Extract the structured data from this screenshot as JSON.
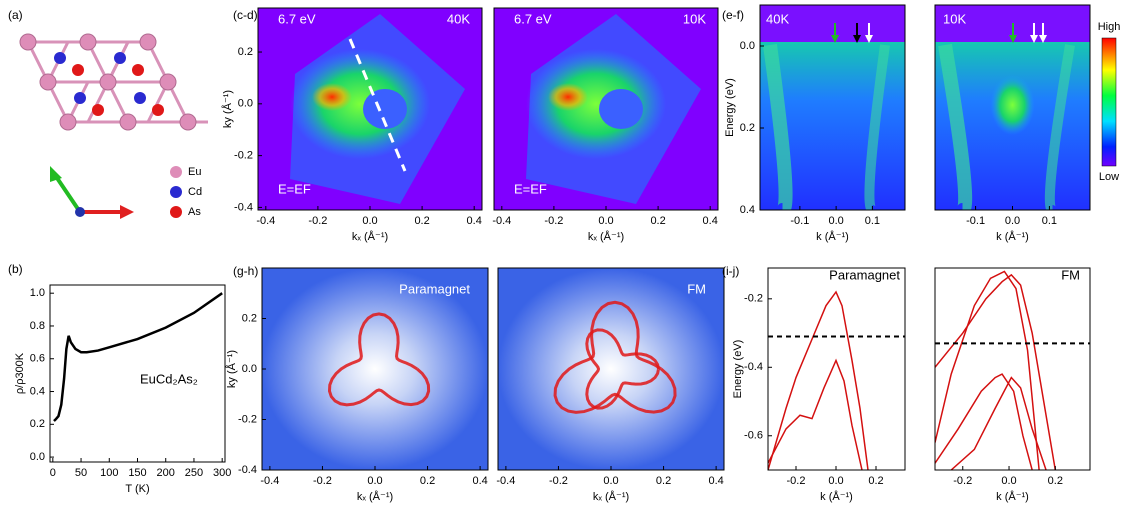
{
  "structure": {
    "label": "(a)",
    "legend": [
      "Eu",
      "Cd",
      "As"
    ]
  },
  "chart_data": [
    {
      "type": "image",
      "label": "(c-d)",
      "annotations": [
        "6.7 eV",
        "40K",
        "E=EF"
      ],
      "xlabel": "kₓ (Å⁻¹)",
      "ylabel": "ky (Å⁻¹)",
      "xlim": [
        -0.43,
        0.43
      ],
      "ylim": [
        -0.41,
        0.37
      ],
      "xticks": [
        -0.4,
        -0.2,
        {
          "value": 0,
          "label": "0.0"
        },
        0.2,
        0.4
      ],
      "yticks": [
        0.2,
        {
          "value": 0,
          "label": "0.0"
        },
        -0.2,
        -0.4
      ]
    },
    {
      "type": "image",
      "annotations": [
        "6.7 eV",
        "10K",
        "E=EF"
      ],
      "xlabel": "kₓ (Å⁻¹)",
      "xlim": [
        -0.43,
        0.43
      ],
      "ylim": [
        -0.41,
        0.37
      ],
      "xticks": [
        -0.4,
        -0.2,
        {
          "value": 0,
          "label": "0.0"
        },
        0.2,
        0.4
      ]
    },
    {
      "type": "image",
      "label": "(e-f)",
      "annotations": [
        "40K"
      ],
      "xlabel": "k (Å⁻¹)",
      "ylabel": "Energy (eV)",
      "xlim": [
        -0.21,
        0.19
      ],
      "ylim": [
        0.4,
        -0.1
      ],
      "xticks": [
        -0.1,
        {
          "value": 0,
          "label": "0.0"
        },
        0.1
      ],
      "yticks": [
        {
          "value": 0,
          "label": "0.0"
        },
        0.2,
        0.4
      ]
    },
    {
      "type": "image",
      "annotations": [
        "10K"
      ],
      "xlabel": "k (Å⁻¹)",
      "xlim": [
        -0.21,
        0.21
      ],
      "ylim": [
        0.4,
        -0.1
      ],
      "xticks": [
        -0.1,
        {
          "value": 0,
          "label": "0.0"
        },
        0.1
      ],
      "colorbar_labels": [
        "High",
        "Low"
      ]
    },
    {
      "type": "line",
      "label": "(b)",
      "annotations": [
        "EuCd₂As₂"
      ],
      "xlabel": "T (K)",
      "ylabel": "ρ/ρ300K",
      "xlim": [
        -5,
        305
      ],
      "ylim": [
        -0.03,
        1.05
      ],
      "xticks": [
        0,
        50,
        100,
        150,
        200,
        250,
        300
      ],
      "yticks": [
        {
          "value": 0,
          "label": "0.0"
        },
        0.2,
        0.4,
        0.6,
        0.8,
        {
          "value": 1,
          "label": "1.0"
        }
      ],
      "series": [
        {
          "color": "#000000",
          "x": [
            2,
            5,
            10,
            15,
            20,
            24,
            28,
            32,
            40,
            50,
            60,
            80,
            100,
            150,
            200,
            250,
            300
          ],
          "values": [
            0.22,
            0.23,
            0.25,
            0.32,
            0.48,
            0.66,
            0.74,
            0.7,
            0.66,
            0.64,
            0.64,
            0.65,
            0.67,
            0.72,
            0.79,
            0.88,
            1.0
          ]
        }
      ]
    },
    {
      "type": "image",
      "label": "(g-h)",
      "annotations": [
        "Paramagnet"
      ],
      "xlabel": "kₓ (Å⁻¹)",
      "ylabel": "ky (Å⁻¹)",
      "xlim": [
        -0.43,
        0.43
      ],
      "ylim": [
        -0.4,
        0.4
      ],
      "xticks": [
        -0.4,
        -0.2,
        {
          "value": 0,
          "label": "0.0"
        },
        0.2,
        0.4
      ],
      "yticks": [
        0.2,
        {
          "value": 0,
          "label": "0.0"
        },
        -0.2,
        -0.4
      ]
    },
    {
      "type": "image",
      "annotations": [
        "FM"
      ],
      "xlabel": "kₓ (Å⁻¹)",
      "xlim": [
        -0.43,
        0.43
      ],
      "ylim": [
        -0.4,
        0.4
      ],
      "xticks": [
        -0.4,
        -0.2,
        {
          "value": 0,
          "label": "0.0"
        },
        0.2,
        0.4
      ]
    },
    {
      "type": "line",
      "label": "(i-j)",
      "annotations": [
        "Paramagnet"
      ],
      "xlabel": "k (Å⁻¹)",
      "ylabel": "Energy (eV)",
      "xlim": [
        -0.34,
        0.345
      ],
      "ylim": [
        -0.7,
        -0.11
      ],
      "xticks": [
        -0.2,
        {
          "value": 0,
          "label": "0.0"
        },
        0.2
      ],
      "yticks": [
        -0.2,
        -0.4,
        -0.6
      ],
      "fermi_level": -0.31,
      "series": [
        {
          "color": "#d41010",
          "x": [
            -0.34,
            -0.25,
            -0.2,
            -0.1,
            -0.05,
            0,
            0.03,
            0.08,
            0.12,
            0.16
          ],
          "values": [
            -0.7,
            -0.52,
            -0.43,
            -0.29,
            -0.22,
            -0.18,
            -0.22,
            -0.38,
            -0.52,
            -0.7
          ]
        },
        {
          "color": "#d41010",
          "x": [
            -0.34,
            -0.25,
            -0.18,
            -0.12,
            -0.06,
            0,
            0.04,
            0.08,
            0.13
          ],
          "values": [
            -0.68,
            -0.58,
            -0.54,
            -0.55,
            -0.46,
            -0.38,
            -0.44,
            -0.57,
            -0.7
          ]
        }
      ]
    },
    {
      "type": "line",
      "annotations": [
        "FM"
      ],
      "xlabel": "k (Å⁻¹)",
      "xlim": [
        -0.32,
        0.35
      ],
      "ylim": [
        -0.7,
        -0.11
      ],
      "xticks": [
        -0.2,
        {
          "value": 0,
          "label": "0.0"
        },
        0.2
      ],
      "fermi_level": -0.33,
      "series": [
        {
          "color": "#d41010",
          "x": [
            -0.32,
            -0.25,
            -0.15,
            -0.08,
            -0.02,
            0.03,
            0.08,
            0.13
          ],
          "values": [
            -0.62,
            -0.42,
            -0.22,
            -0.14,
            -0.12,
            -0.17,
            -0.35,
            -0.7
          ]
        },
        {
          "color": "#d41010",
          "x": [
            -0.32,
            -0.2,
            -0.1,
            -0.03,
            0.01,
            0.05,
            0.1,
            0.15,
            0.2
          ],
          "values": [
            -0.4,
            -0.3,
            -0.2,
            -0.15,
            -0.13,
            -0.16,
            -0.3,
            -0.5,
            -0.7
          ]
        },
        {
          "color": "#d41010",
          "x": [
            -0.32,
            -0.22,
            -0.12,
            -0.06,
            -0.03,
            0.02,
            0.06,
            0.1
          ],
          "values": [
            -0.68,
            -0.58,
            -0.47,
            -0.43,
            -0.42,
            -0.47,
            -0.6,
            -0.7
          ]
        },
        {
          "color": "#d41010",
          "x": [
            -0.25,
            -0.15,
            -0.06,
            0.01,
            0.05,
            0.1,
            0.16
          ],
          "values": [
            -0.7,
            -0.64,
            -0.52,
            -0.43,
            -0.46,
            -0.58,
            -0.7
          ]
        }
      ]
    }
  ]
}
